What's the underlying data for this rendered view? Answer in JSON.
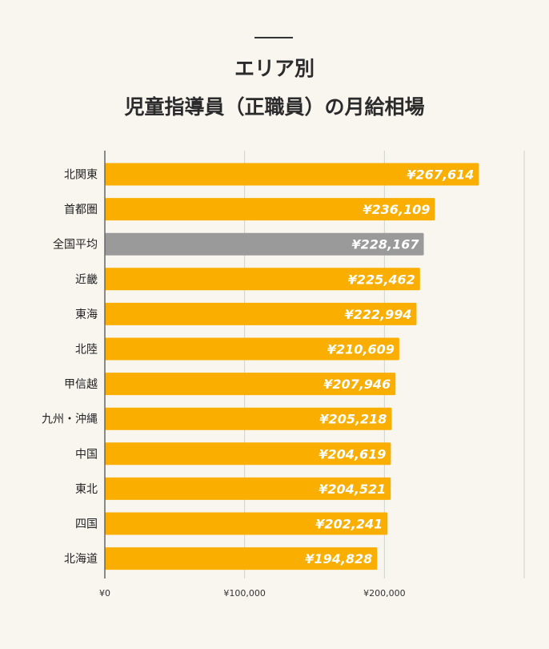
{
  "chart_data": {
    "type": "bar",
    "orientation": "horizontal",
    "title": [
      "エリア別",
      "児童指導員（正職員）の月給相場"
    ],
    "categories": [
      "北関東",
      "首都圏",
      "全国平均",
      "近畿",
      "東海",
      "北陸",
      "甲信越",
      "九州・沖縄",
      "中国",
      "東北",
      "四国",
      "北海道"
    ],
    "values": [
      267614,
      236109,
      228167,
      225462,
      222994,
      210609,
      207946,
      205218,
      204619,
      204521,
      202241,
      194828
    ],
    "data_labels": [
      "¥267,614",
      "¥236,109",
      "¥228,167",
      "¥225,462",
      "¥222,994",
      "¥210,609",
      "¥207,946",
      "¥205,218",
      "¥204,619",
      "¥204,521",
      "¥202,241",
      "¥194,828"
    ],
    "highlight": "全国平均",
    "colors": {
      "bar": "#f9ae00",
      "highlight": "#9a9a9a",
      "label": "#ffffff"
    },
    "xlim": [
      0,
      300000
    ],
    "x_ticks": [
      0,
      100000,
      200000,
      300000
    ],
    "x_tick_labels": [
      "¥0",
      "¥100,000",
      "¥200,000",
      ""
    ],
    "grid": true,
    "xlabel": "",
    "ylabel": ""
  }
}
